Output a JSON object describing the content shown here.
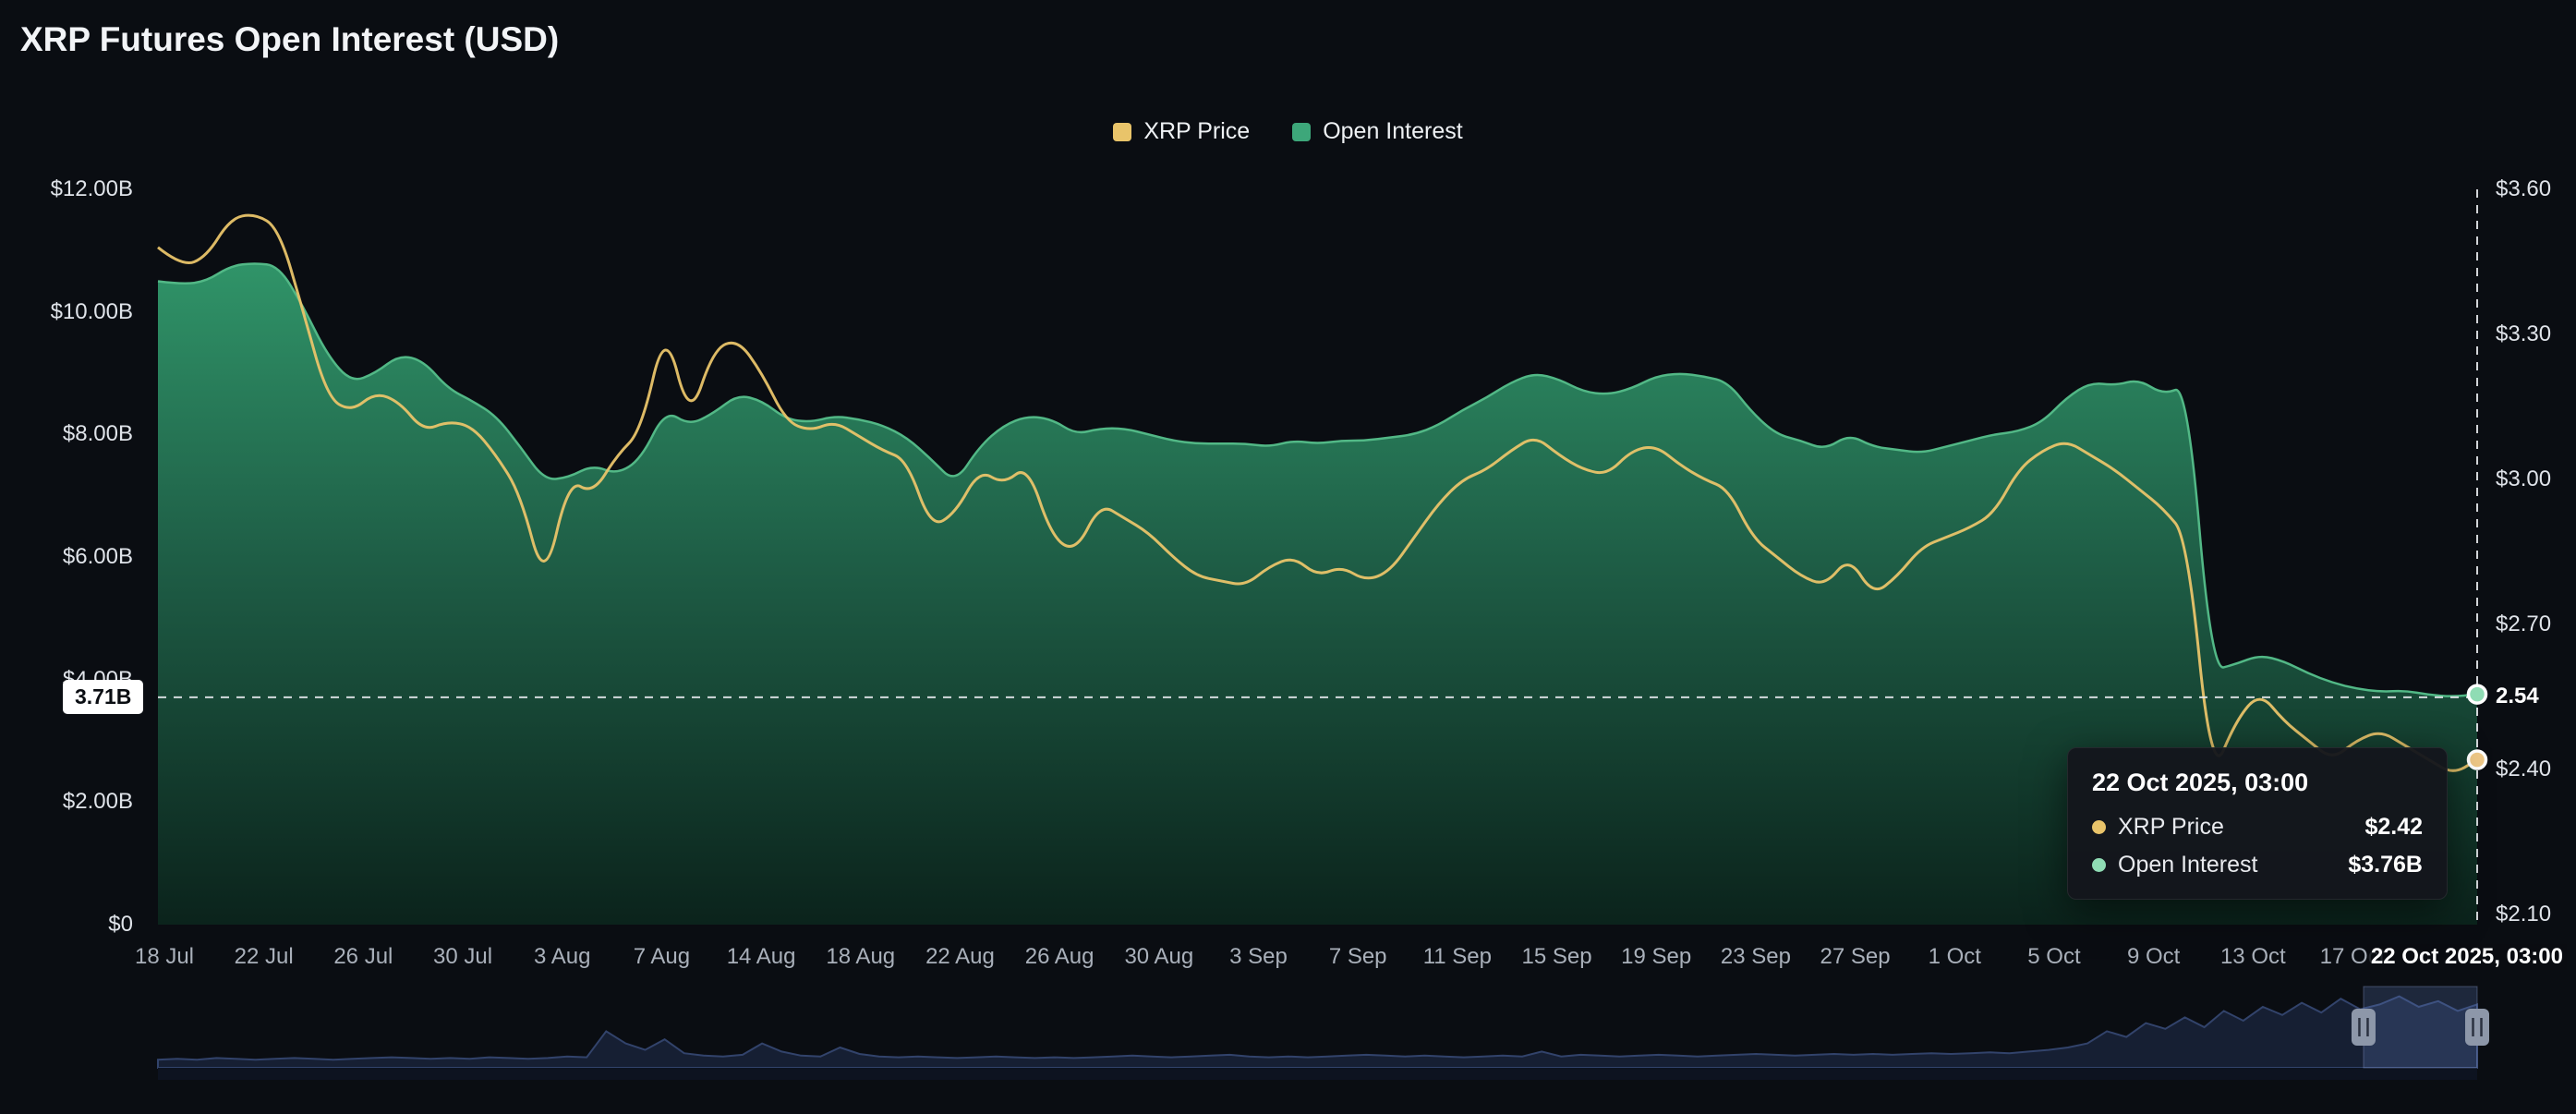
{
  "title": "XRP Futures Open Interest (USD)",
  "legend": {
    "items": [
      {
        "label": "XRP Price",
        "color": "#e9c46a"
      },
      {
        "label": "Open Interest",
        "color": "#3da77a"
      }
    ]
  },
  "colors": {
    "background": "#0a0d12",
    "price_line": "#e9c46a",
    "oi_line": "#52b886",
    "oi_fill_top": "#31986b",
    "oi_fill_mid": "#1f6148",
    "oi_fill_bottom": "#0b241c",
    "crosshair": "#e8ebef",
    "navigator_fill": "#161f33",
    "navigator_stroke": "#32436b",
    "navigator_selection": "rgba(104,136,208,0.22)",
    "handle_fill": "#8d97a9",
    "handle_bars": "#2a3140",
    "end_dot_oi": "#8fdcb4",
    "end_dot_price": "#eec887"
  },
  "axes": {
    "left": {
      "labels": [
        "$12.00B",
        "$10.00B",
        "$8.00B",
        "$6.00B",
        "$4.00B",
        "$2.00B",
        "$0"
      ],
      "values": [
        12,
        10,
        8,
        6,
        4,
        2,
        0
      ]
    },
    "right": {
      "labels": [
        "$3.60",
        "$3.30",
        "$3.00",
        "$2.70",
        "$2.40",
        "$2.10"
      ],
      "values": [
        3.6,
        3.3,
        3.0,
        2.7,
        2.4,
        2.1
      ]
    },
    "x": {
      "labels": [
        "18 Jul",
        "22 Jul",
        "26 Jul",
        "30 Jul",
        "3 Aug",
        "7 Aug",
        "14 Aug",
        "18 Aug",
        "22 Aug",
        "26 Aug",
        "30 Aug",
        "3 Sep",
        "7 Sep",
        "11 Sep",
        "15 Sep",
        "19 Sep",
        "23 Sep",
        "27 Sep",
        "1 Oct",
        "5 Oct",
        "9 Oct",
        "13 Oct",
        "17 Oct"
      ]
    }
  },
  "crosshair": {
    "left_label": "3.71B",
    "right_label": "2.54",
    "date_label": "22 Oct 2025, 03:00",
    "oi_value": 3.71,
    "price_value": 2.54
  },
  "tooltip": {
    "title": "22 Oct 2025, 03:00",
    "rows": [
      {
        "label": "XRP Price",
        "value": "$2.42",
        "color": "#e9c46a"
      },
      {
        "label": "Open Interest",
        "value": "$3.76B",
        "color": "#8fdcb4"
      }
    ]
  },
  "chart_data": {
    "type": "area",
    "title": "XRP Futures Open Interest (USD)",
    "legend_position": "top",
    "grid": false,
    "left_ylim_billions": [
      0,
      12
    ],
    "right_ylim_usd": [
      2.1,
      3.6
    ],
    "x": [
      "18 Jul",
      "19 Jul",
      "20 Jul",
      "21 Jul",
      "22 Jul",
      "23 Jul",
      "24 Jul",
      "25 Jul",
      "26 Jul",
      "27 Jul",
      "28 Jul",
      "29 Jul",
      "30 Jul",
      "31 Jul",
      "1 Aug",
      "2 Aug",
      "3 Aug",
      "4 Aug",
      "5 Aug",
      "6 Aug",
      "7 Aug",
      "8 Aug",
      "9 Aug",
      "10 Aug",
      "11 Aug",
      "12 Aug",
      "13 Aug",
      "14 Aug",
      "15 Aug",
      "16 Aug",
      "17 Aug",
      "18 Aug",
      "19 Aug",
      "20 Aug",
      "21 Aug",
      "22 Aug",
      "23 Aug",
      "24 Aug",
      "25 Aug",
      "26 Aug",
      "27 Aug",
      "28 Aug",
      "29 Aug",
      "30 Aug",
      "31 Aug",
      "1 Sep",
      "2 Sep",
      "3 Sep",
      "4 Sep",
      "5 Sep",
      "6 Sep",
      "7 Sep",
      "8 Sep",
      "9 Sep",
      "10 Sep",
      "11 Sep",
      "12 Sep",
      "13 Sep",
      "14 Sep",
      "15 Sep",
      "16 Sep",
      "17 Sep",
      "18 Sep",
      "19 Sep",
      "20 Sep",
      "21 Sep",
      "22 Sep",
      "23 Sep",
      "24 Sep",
      "25 Sep",
      "26 Sep",
      "27 Sep",
      "28 Sep",
      "29 Sep",
      "30 Sep",
      "1 Oct",
      "2 Oct",
      "3 Oct",
      "4 Oct",
      "5 Oct",
      "6 Oct",
      "7 Oct",
      "8 Oct",
      "9 Oct",
      "10 Oct",
      "11 Oct",
      "12 Oct",
      "13 Oct",
      "14 Oct",
      "15 Oct",
      "16 Oct",
      "17 Oct",
      "18 Oct",
      "19 Oct",
      "20 Oct",
      "21 Oct",
      "22 Oct"
    ],
    "series": [
      {
        "name": "Open Interest",
        "axis": "left",
        "unit": "B USD",
        "color": "#3da77a",
        "values": [
          10.5,
          10.45,
          10.5,
          10.75,
          10.8,
          10.75,
          10.1,
          9.3,
          8.85,
          9.0,
          9.3,
          9.2,
          8.75,
          8.55,
          8.3,
          7.8,
          7.25,
          7.3,
          7.5,
          7.35,
          7.6,
          8.4,
          8.15,
          8.35,
          8.65,
          8.55,
          8.25,
          8.2,
          8.3,
          8.25,
          8.15,
          7.95,
          7.6,
          7.2,
          7.8,
          8.15,
          8.3,
          8.25,
          8.0,
          8.1,
          8.1,
          8.0,
          7.9,
          7.85,
          7.85,
          7.85,
          7.8,
          7.9,
          7.85,
          7.9,
          7.9,
          7.95,
          8.0,
          8.15,
          8.4,
          8.6,
          8.85,
          9.0,
          8.9,
          8.7,
          8.65,
          8.75,
          8.95,
          9.0,
          8.95,
          8.85,
          8.35,
          8.0,
          7.9,
          7.75,
          8.0,
          7.8,
          7.75,
          7.7,
          7.8,
          7.9,
          8.0,
          8.05,
          8.2,
          8.6,
          8.85,
          8.8,
          8.9,
          8.65,
          8.8,
          4.15,
          4.25,
          4.4,
          4.3,
          4.1,
          3.95,
          3.85,
          3.8,
          3.82,
          3.75,
          3.72,
          3.76
        ]
      },
      {
        "name": "XRP Price",
        "axis": "right",
        "unit": "USD",
        "color": "#e9c46a",
        "values": [
          3.48,
          3.44,
          3.46,
          3.54,
          3.55,
          3.52,
          3.35,
          3.17,
          3.14,
          3.18,
          3.16,
          3.1,
          3.12,
          3.11,
          3.05,
          2.97,
          2.78,
          3.0,
          2.97,
          3.05,
          3.1,
          3.32,
          3.12,
          3.27,
          3.29,
          3.22,
          3.12,
          3.1,
          3.12,
          3.09,
          3.06,
          3.04,
          2.9,
          2.93,
          3.02,
          2.99,
          3.03,
          2.88,
          2.85,
          2.95,
          2.92,
          2.89,
          2.84,
          2.8,
          2.79,
          2.78,
          2.82,
          2.84,
          2.8,
          2.82,
          2.79,
          2.81,
          2.88,
          2.95,
          3.0,
          3.02,
          3.06,
          3.09,
          3.05,
          3.02,
          3.01,
          3.06,
          3.07,
          3.03,
          3.0,
          2.98,
          2.88,
          2.84,
          2.8,
          2.78,
          2.84,
          2.76,
          2.8,
          2.86,
          2.88,
          2.9,
          2.93,
          3.02,
          3.06,
          3.08,
          3.05,
          3.02,
          2.98,
          2.94,
          2.88,
          2.38,
          2.5,
          2.56,
          2.5,
          2.46,
          2.42,
          2.46,
          2.48,
          2.45,
          2.42,
          2.39,
          2.42
        ]
      },
      {
        "name": "Current",
        "axis": "both",
        "last_oi": "$3.76B",
        "last_price": "$2.42",
        "values": []
      }
    ]
  },
  "navigator": {
    "selection": [
      0.951,
      1.0
    ],
    "values": [
      0.1,
      0.11,
      0.1,
      0.12,
      0.11,
      0.1,
      0.11,
      0.12,
      0.11,
      0.1,
      0.11,
      0.12,
      0.13,
      0.12,
      0.11,
      0.12,
      0.11,
      0.13,
      0.12,
      0.11,
      0.12,
      0.14,
      0.13,
      0.45,
      0.3,
      0.22,
      0.35,
      0.18,
      0.15,
      0.14,
      0.16,
      0.3,
      0.2,
      0.15,
      0.14,
      0.25,
      0.17,
      0.14,
      0.13,
      0.14,
      0.13,
      0.12,
      0.13,
      0.14,
      0.13,
      0.12,
      0.13,
      0.12,
      0.13,
      0.14,
      0.15,
      0.14,
      0.13,
      0.14,
      0.15,
      0.16,
      0.14,
      0.13,
      0.14,
      0.13,
      0.14,
      0.15,
      0.16,
      0.15,
      0.14,
      0.15,
      0.14,
      0.13,
      0.14,
      0.15,
      0.14,
      0.2,
      0.14,
      0.16,
      0.15,
      0.14,
      0.15,
      0.16,
      0.15,
      0.14,
      0.15,
      0.16,
      0.17,
      0.16,
      0.15,
      0.16,
      0.17,
      0.16,
      0.17,
      0.16,
      0.17,
      0.18,
      0.17,
      0.18,
      0.19,
      0.18,
      0.2,
      0.22,
      0.25,
      0.3,
      0.45,
      0.38,
      0.55,
      0.48,
      0.62,
      0.5,
      0.7,
      0.58,
      0.75,
      0.65,
      0.8,
      0.68,
      0.85,
      0.72,
      0.78,
      0.88,
      0.75,
      0.82,
      0.7,
      0.78
    ]
  }
}
